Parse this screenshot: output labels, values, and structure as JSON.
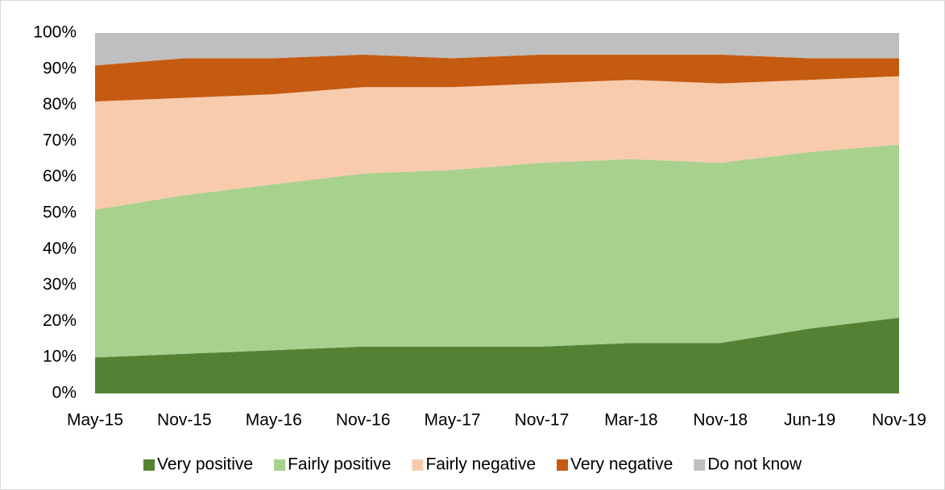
{
  "chart_data": {
    "type": "stacked_area",
    "categories": [
      "May-15",
      "Nov-15",
      "May-16",
      "Nov-16",
      "May-17",
      "Nov-17",
      "Mar-18",
      "Nov-18",
      "Jun-19",
      "Nov-19"
    ],
    "series": [
      {
        "name": "Very positive",
        "color": "#548235",
        "values": [
          10,
          11,
          12,
          13,
          13,
          13,
          14,
          14,
          18,
          21
        ]
      },
      {
        "name": "Fairly positive",
        "color": "#a9d18e",
        "values": [
          41,
          44,
          46,
          48,
          49,
          51,
          51,
          50,
          49,
          48
        ]
      },
      {
        "name": "Fairly negative",
        "color": "#f8cbad",
        "values": [
          30,
          27,
          25,
          24,
          23,
          22,
          22,
          22,
          20,
          19
        ]
      },
      {
        "name": "Very negative",
        "color": "#c55a11",
        "values": [
          10,
          11,
          10,
          9,
          8,
          8,
          7,
          8,
          6,
          5
        ]
      },
      {
        "name": "Do not know",
        "color": "#bfbfbf",
        "values": [
          9,
          7,
          7,
          6,
          7,
          6,
          6,
          6,
          7,
          7
        ]
      }
    ],
    "ylim": [
      0,
      100
    ],
    "yticks": [
      {
        "value": 0,
        "label": "0%"
      },
      {
        "value": 10,
        "label": "10%"
      },
      {
        "value": 20,
        "label": "20%"
      },
      {
        "value": 30,
        "label": "30%"
      },
      {
        "value": 40,
        "label": "40%"
      },
      {
        "value": 50,
        "label": "50%"
      },
      {
        "value": 60,
        "label": "60%"
      },
      {
        "value": 70,
        "label": "70%"
      },
      {
        "value": 80,
        "label": "80%"
      },
      {
        "value": 90,
        "label": "90%"
      },
      {
        "value": 100,
        "label": "100%"
      }
    ],
    "legend": "bottom"
  }
}
